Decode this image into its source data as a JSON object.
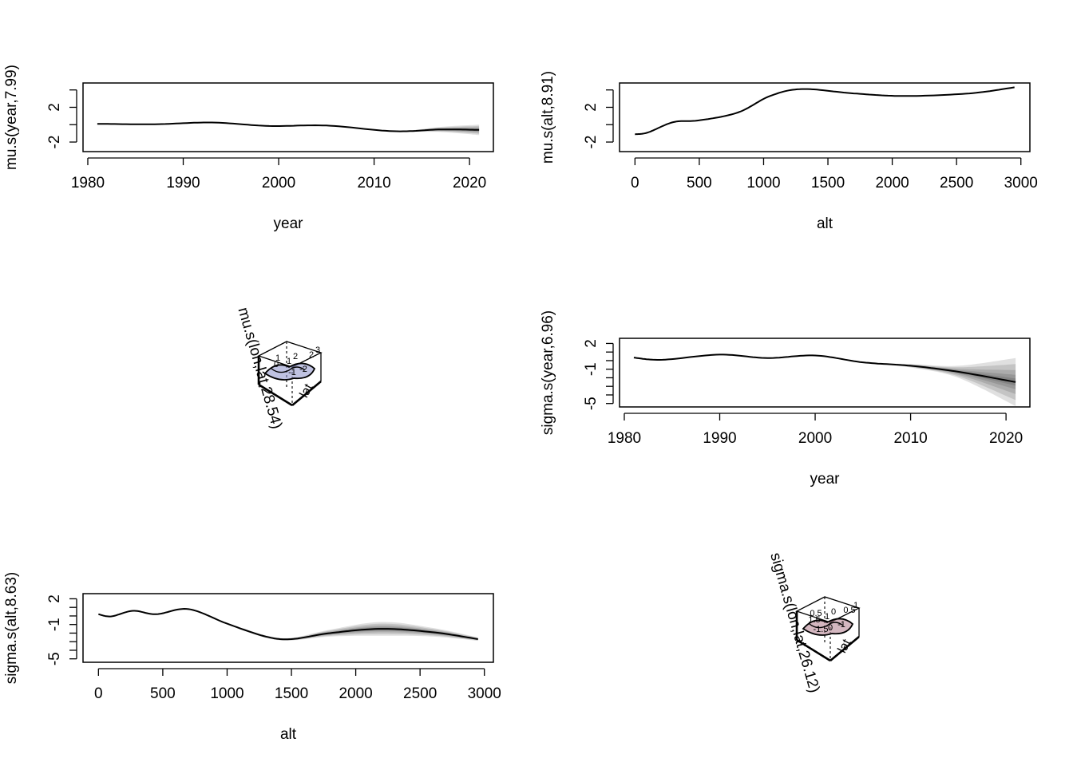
{
  "chart_data": [
    {
      "type": "line",
      "panel": "mu-year",
      "ylabel": "mu.s(year,7.99)",
      "xlabel": "year",
      "xlim": [
        1979.5,
        2022.5
      ],
      "ylim": [
        -3.1,
        4.8
      ],
      "x_ticks": [
        1980,
        1990,
        2000,
        2010,
        2020
      ],
      "y_ticks": [
        -2,
        0,
        2,
        4
      ],
      "y_tick_labels": [
        "-2",
        "",
        "2",
        ""
      ],
      "x": [
        1981,
        1987,
        1993,
        1999,
        2005,
        2012,
        2017,
        2021
      ],
      "y": [
        0.1,
        0.05,
        0.25,
        -0.15,
        -0.1,
        -0.75,
        -0.55,
        -0.6
      ],
      "band": [
        0,
        0,
        0,
        0,
        0,
        0,
        0.3,
        0.6
      ]
    },
    {
      "type": "line",
      "panel": "mu-alt",
      "ylabel": "mu.s(alt,8.91)",
      "xlabel": "alt",
      "xlim": [
        -120,
        3070
      ],
      "ylim": [
        -3.1,
        4.8
      ],
      "x_ticks": [
        0,
        500,
        1000,
        1500,
        2000,
        2500,
        3000
      ],
      "y_ticks": [
        -2,
        0,
        2,
        4
      ],
      "y_tick_labels": [
        "-2",
        "",
        "2",
        ""
      ],
      "x": [
        0,
        100,
        300,
        500,
        800,
        1050,
        1300,
        1700,
        2100,
        2600,
        2950
      ],
      "y": [
        -1.1,
        -0.9,
        0.3,
        0.5,
        1.4,
        3.3,
        4.1,
        3.6,
        3.3,
        3.6,
        4.3
      ],
      "band": [
        0,
        0,
        0,
        0,
        0,
        0,
        0,
        0,
        0,
        0,
        0
      ]
    },
    {
      "type": "line",
      "panel": "sigma-year",
      "ylabel": "sigma.s(year,6.96)",
      "xlabel": "year",
      "xlim": [
        1979.5,
        2022.5
      ],
      "ylim": [
        -5.4,
        2.6
      ],
      "x_ticks": [
        1980,
        1990,
        2000,
        2010,
        2020
      ],
      "y_ticks": [
        -5,
        -4,
        -3,
        -2,
        -1,
        0,
        1,
        2
      ],
      "y_tick_labels": [
        "-5",
        "",
        "",
        "",
        "-1",
        "",
        "",
        "2"
      ],
      "x": [
        1981,
        1984,
        1990,
        1995,
        2000,
        2005,
        2010,
        2015,
        2021
      ],
      "y": [
        0.35,
        0.1,
        0.7,
        0.3,
        0.6,
        -0.2,
        -0.6,
        -1.3,
        -2.5
      ],
      "band": [
        0,
        0,
        0,
        0,
        0,
        0,
        0.2,
        0.7,
        2.8
      ]
    },
    {
      "type": "line",
      "panel": "sigma-alt",
      "ylabel": "sigma.s(alt,8.63)",
      "xlabel": "alt",
      "xlim": [
        -120,
        3070
      ],
      "ylim": [
        -5.4,
        2.6
      ],
      "x_ticks": [
        0,
        500,
        1000,
        1500,
        2000,
        2500,
        3000
      ],
      "y_ticks": [
        -5,
        -4,
        -3,
        -2,
        -1,
        0,
        1,
        2
      ],
      "y_tick_labels": [
        "-5",
        "",
        "",
        "",
        "-1",
        "",
        "",
        "2"
      ],
      "x": [
        0,
        100,
        270,
        450,
        700,
        1000,
        1300,
        1500,
        1800,
        2200,
        2600,
        2950
      ],
      "y": [
        0.2,
        -0.05,
        0.6,
        0.2,
        0.8,
        -0.9,
        -2.4,
        -2.7,
        -2.0,
        -1.5,
        -1.9,
        -2.7
      ],
      "band": [
        0,
        0,
        0,
        0,
        0,
        0.1,
        0.15,
        0.15,
        0.4,
        0.8,
        0.5,
        0.2
      ]
    },
    {
      "type": "surface",
      "panel": "mu-lonlat",
      "zlabel": "mu.s(lon,lat,28.54)",
      "axis_label": "lat",
      "contour_labels": [
        "1",
        "2",
        "0",
        "1",
        "2",
        "3",
        "-1",
        "-2"
      ]
    },
    {
      "type": "surface",
      "panel": "sigma-lonlat",
      "zlabel": "sigma.s(lon,lat,26.12)",
      "axis_label": "lat",
      "contour_labels": [
        "0.5",
        "0",
        "1.5",
        "1",
        "0.5",
        "1",
        "0",
        "-1",
        "-1.5"
      ]
    }
  ]
}
